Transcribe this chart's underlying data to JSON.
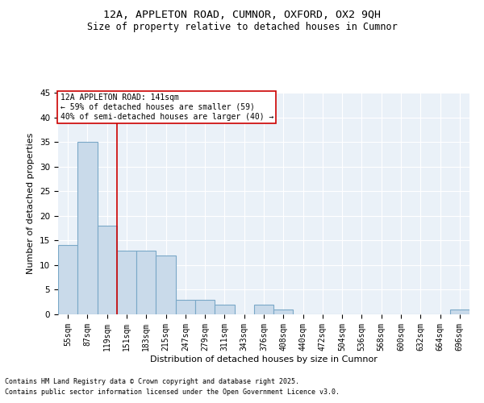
{
  "title1": "12A, APPLETON ROAD, CUMNOR, OXFORD, OX2 9QH",
  "title2": "Size of property relative to detached houses in Cumnor",
  "xlabel": "Distribution of detached houses by size in Cumnor",
  "ylabel": "Number of detached properties",
  "footer1": "Contains HM Land Registry data © Crown copyright and database right 2025.",
  "footer2": "Contains public sector information licensed under the Open Government Licence v3.0.",
  "categories": [
    "55sqm",
    "87sqm",
    "119sqm",
    "151sqm",
    "183sqm",
    "215sqm",
    "247sqm",
    "279sqm",
    "311sqm",
    "343sqm",
    "376sqm",
    "408sqm",
    "440sqm",
    "472sqm",
    "504sqm",
    "536sqm",
    "568sqm",
    "600sqm",
    "632sqm",
    "664sqm",
    "696sqm"
  ],
  "values": [
    14,
    35,
    18,
    13,
    13,
    12,
    3,
    3,
    2,
    0,
    2,
    1,
    0,
    0,
    0,
    0,
    0,
    0,
    0,
    0,
    1
  ],
  "bar_color": "#c9daea",
  "bar_edge_color": "#7aa8c7",
  "bg_color": "#eaf1f8",
  "grid_color": "#ffffff",
  "vline_x": 2.5,
  "vline_color": "#cc0000",
  "annotation_text": "12A APPLETON ROAD: 141sqm\n← 59% of detached houses are smaller (59)\n40% of semi-detached houses are larger (40) →",
  "annotation_box_color": "#cc0000",
  "ylim": [
    0,
    45
  ],
  "yticks": [
    0,
    5,
    10,
    15,
    20,
    25,
    30,
    35,
    40,
    45
  ]
}
